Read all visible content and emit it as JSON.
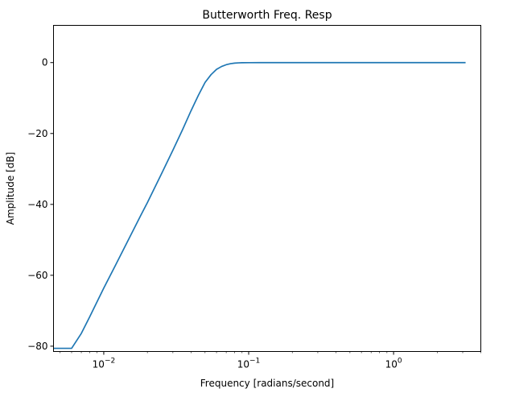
{
  "chart_data": {
    "type": "line",
    "title": "Butterworth Freq. Resp",
    "xlabel": "Frequency [radians/second]",
    "ylabel": "Amplitude [dB]",
    "xscale": "log",
    "xlim": [
      0.0045,
      4.0
    ],
    "ylim": [
      -81.5,
      10.5
    ],
    "grid": false,
    "line_color": "#1f77b4",
    "x_ticks": [
      {
        "value": 0.01,
        "label": "10",
        "exp": "−2"
      },
      {
        "value": 0.1,
        "label": "10",
        "exp": "−1"
      },
      {
        "value": 1,
        "label": "10",
        "exp": "0"
      }
    ],
    "y_ticks": [
      {
        "value": 0,
        "label": "0"
      },
      {
        "value": -20,
        "label": "−20"
      },
      {
        "value": -40,
        "label": "−40"
      },
      {
        "value": -60,
        "label": "−60"
      },
      {
        "value": -80,
        "label": "−80"
      }
    ],
    "series": [
      {
        "x": [
          0.0045,
          0.006,
          0.007,
          0.008,
          0.01,
          0.012,
          0.015,
          0.018,
          0.02,
          0.025,
          0.03,
          0.035,
          0.04,
          0.045,
          0.05,
          0.055,
          0.06,
          0.065,
          0.07,
          0.075,
          0.08,
          0.085,
          0.09,
          0.1,
          0.12,
          0.15,
          0.2,
          0.3,
          0.5,
          1.0,
          2.0,
          3.14
        ],
        "y": [
          -80.6,
          -80.6,
          -76.4,
          -71.7,
          -63.6,
          -57.3,
          -49.5,
          -43.1,
          -39.5,
          -31.4,
          -24.7,
          -18.9,
          -13.6,
          -9.2,
          -5.6,
          -3.4,
          -1.9,
          -1.1,
          -0.6,
          -0.3,
          -0.15,
          -0.08,
          -0.04,
          -0.02,
          0,
          0,
          0,
          0,
          0,
          0,
          0,
          0
        ]
      }
    ]
  }
}
